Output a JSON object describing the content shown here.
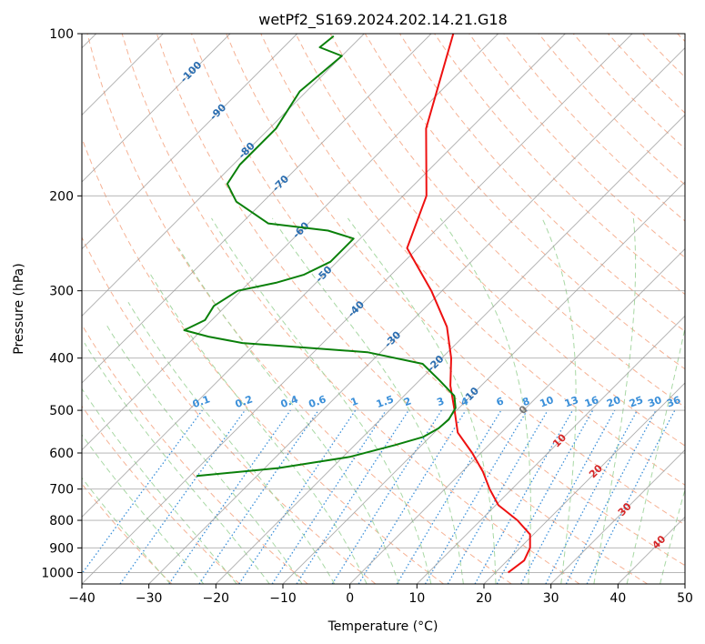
{
  "chart_data": {
    "type": "skew-t",
    "title": "wetPf2_S169.2024.202.14.21.G18",
    "xlabel": "Temperature (°C)",
    "ylabel": "Pressure (hPa)",
    "xlim": [
      -40,
      50
    ],
    "ylim": [
      1050,
      100
    ],
    "x_ticks": [
      "−40",
      "−30",
      "−20",
      "−10",
      "0",
      "10",
      "20",
      "30",
      "40",
      "50"
    ],
    "y_ticks": [
      "100",
      "200",
      "300",
      "400",
      "500",
      "600",
      "700",
      "800",
      "900",
      "1000"
    ],
    "y_scale": "log",
    "grid": true,
    "colors": {
      "temperature": "#ee1111",
      "dewpoint": "#0a800a",
      "isotherm": "#999999",
      "dry_adiabat": "#f4a582",
      "moist_adiabat": "#9fd49a",
      "mixing_ratio": "#3a8fd9",
      "temp_label": "#2a6db0",
      "mix_label": "#3a8fd9",
      "warm_label": "#d62728",
      "zero_label": "#777777"
    },
    "isotherm_labels": [
      "-100",
      "-90",
      "-80",
      "-70",
      "-60",
      "-50",
      "-40",
      "-30",
      "-20",
      "-10",
      "0",
      "10",
      "20",
      "30",
      "40"
    ],
    "mixing_ratio_labels": [
      "0.1",
      "0.2",
      "0.4",
      "0.6",
      "1",
      "1.5",
      "2",
      "3",
      "4",
      "6",
      "8",
      "10",
      "13",
      "16",
      "20",
      "25",
      "30",
      "36"
    ],
    "series": [
      {
        "name": "",
        "color": "#ee1111",
        "points": [
          [
            1000,
            21.9
          ],
          [
            950,
            22.5
          ],
          [
            900,
            21.5
          ],
          [
            850,
            19.5
          ],
          [
            800,
            15.5
          ],
          [
            750,
            10.4
          ],
          [
            700,
            6.7
          ],
          [
            650,
            3.1
          ],
          [
            600,
            -1.3
          ],
          [
            550,
            -6.5
          ],
          [
            500,
            -10.3
          ],
          [
            450,
            -14.6
          ],
          [
            400,
            -18.6
          ],
          [
            350,
            -23.9
          ],
          [
            300,
            -31.6
          ],
          [
            250,
            -41.6
          ],
          [
            200,
            -46.5
          ],
          [
            150,
            -56.6
          ],
          [
            100,
            -66.7
          ]
        ]
      },
      {
        "name": "",
        "color": "#0a800a",
        "points": [
          [
            662,
            -39.0
          ],
          [
            640,
            -28.0
          ],
          [
            610,
            -19.0
          ],
          [
            580,
            -14.0
          ],
          [
            560,
            -11.0
          ],
          [
            540,
            -10.0
          ],
          [
            520,
            -9.8
          ],
          [
            495,
            -10.5
          ],
          [
            470,
            -12.5
          ],
          [
            440,
            -17.0
          ],
          [
            410,
            -22.0
          ],
          [
            390,
            -32.0
          ],
          [
            375,
            -52.0
          ],
          [
            365,
            -58.0
          ],
          [
            355,
            -62.6
          ],
          [
            340,
            -61.0
          ],
          [
            320,
            -61.8
          ],
          [
            300,
            -60.5
          ],
          [
            290,
            -56.0
          ],
          [
            280,
            -53.0
          ],
          [
            265,
            -51.0
          ],
          [
            255,
            -51.0
          ],
          [
            240,
            -51.0
          ],
          [
            232,
            -56.0
          ],
          [
            225,
            -66.0
          ],
          [
            205,
            -74.0
          ],
          [
            190,
            -78.0
          ],
          [
            175,
            -79.0
          ],
          [
            150,
            -79.0
          ],
          [
            128,
            -81.0
          ],
          [
            110,
            -80.0
          ],
          [
            106,
            -84.6
          ],
          [
            101,
            -84.2
          ]
        ]
      }
    ]
  }
}
